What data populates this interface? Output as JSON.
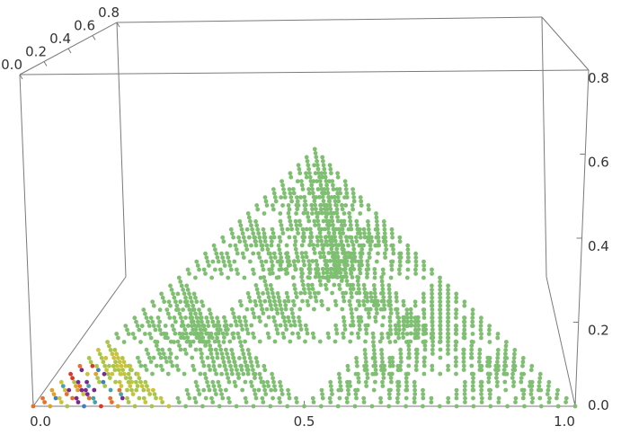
{
  "chart_data": {
    "type": "scatter",
    "subtype": "3d-point-cloud",
    "title": "",
    "xlabel": "",
    "ylabel": "",
    "zlabel": "",
    "xlim": [
      0,
      1
    ],
    "ylim": [
      0,
      0.8
    ],
    "zlim": [
      0,
      0.8
    ],
    "x_ticks": [
      "0.0",
      "0.5",
      "1.0"
    ],
    "y_ticks": [
      "0.0",
      "0.2",
      "0.4",
      "0.6",
      "0.8"
    ],
    "z_ticks": [
      "0.0",
      "0.2",
      "0.4",
      "0.6",
      "0.8"
    ],
    "shape": "Sierpinski tetrahedron (fractal point set)",
    "generator": {
      "vertices": [
        [
          0,
          0,
          0
        ],
        [
          1,
          0,
          0
        ],
        [
          0.5,
          0.866,
          0
        ],
        [
          0.5,
          0.289,
          0.816
        ]
      ],
      "depth": 5
    },
    "point_colors": {
      "default": "#7fbf72",
      "near_origin": [
        "#d93a26",
        "#e8702a",
        "#e0a22c",
        "#c9c23a",
        "#a9c64a",
        "#7a2a8c",
        "#3f7fc1",
        "#4aa0a8"
      ]
    },
    "box_frame": true,
    "grid": false,
    "legend": "none"
  }
}
